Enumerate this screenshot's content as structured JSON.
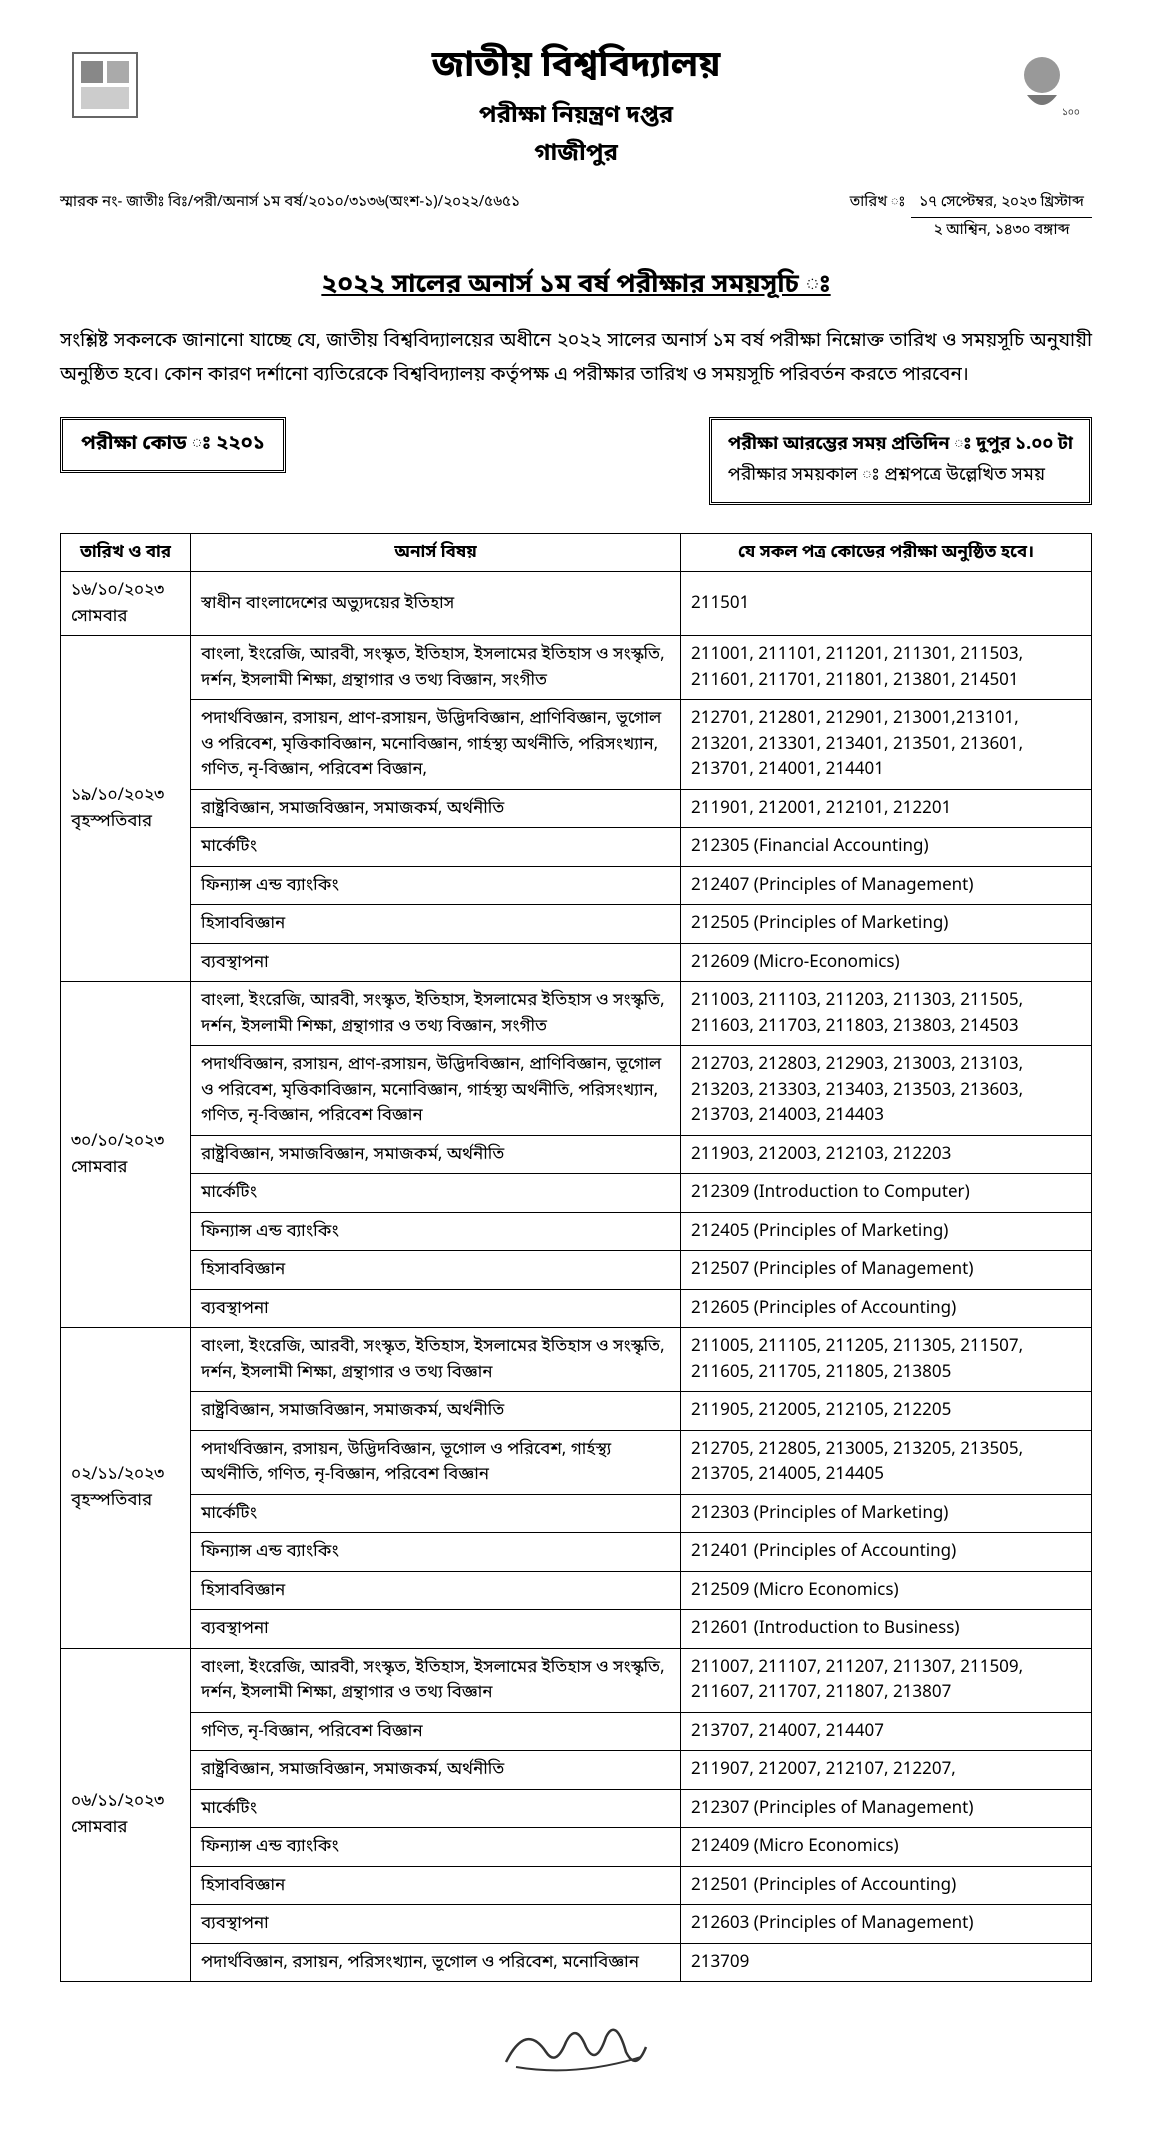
{
  "header": {
    "university": "জাতীয় বিশ্ববিদ্যালয়",
    "department": "পরীক্ষা নিয়ন্ত্রণ দপ্তর",
    "city": "গাজীপুর"
  },
  "ref": {
    "label": "স্মারক নং- জাতীঃ বিঃ/পরী/অনার্স ১ম বর্ষ/২০১০/৩১৩৬(অংশ-১)/২০২২/৫৬৫১",
    "date_label": "তারিখ ঃ",
    "date_line1": "১৭ সেপ্টেম্বর, ২০২৩ খ্রিস্টাব্দ",
    "date_line2": "২ আশ্বিন, ১৪৩০ বঙ্গাব্দ"
  },
  "main_heading": "২০২২ সালের অনার্স ১ম বর্ষ পরীক্ষার সময়সূচি ঃ",
  "intro": "সংশ্লিষ্ট সকলকে জানানো যাচ্ছে যে, জাতীয় বিশ্ববিদ্যালয়ের অধীনে ২০২২ সালের অনার্স ১ম বর্ষ পরীক্ষা নিম্নোক্ত তারিখ ও সময়সূচি অনুযায়ী অনুষ্ঠিত হবে। কোন কারণ দর্শানো ব্যতিরেকে বিশ্ববিদ্যালয় কর্তৃপক্ষ এ পরীক্ষার তারিখ ও সময়সূচি পরিবর্তন করতে পারবেন।",
  "exam_code_box": "পরীক্ষা কোড ঃ ২২০১",
  "time_box": {
    "start": "পরীক্ষা আরম্ভের সময় প্রতিদিন ঃ  দুপুর ১.০০ টা",
    "duration": "পরীক্ষার সময়কাল ঃ  প্রশ্নপত্রে উল্লেখিত সময়"
  },
  "table": {
    "headers": {
      "date": "তারিখ ও বার",
      "subject": "অনার্স বিষয়",
      "codes": "যে সকল পত্র কোডের পরীক্ষা অনুষ্ঠিত হবে।"
    },
    "groups": [
      {
        "date": "১৬/১০/২০২৩",
        "day": "সোমবার",
        "rows": [
          {
            "subject": "স্বাধীন বাংলাদেশের অভ্যুদয়ের ইতিহাস",
            "codes": "211501"
          }
        ]
      },
      {
        "date": "১৯/১০/২০২৩",
        "day": "বৃহস্পতিবার",
        "rows": [
          {
            "subject": "বাংলা, ইংরেজি, আরবী, সংস্কৃত, ইতিহাস, ইসলামের ইতিহাস ও সংস্কৃতি, দর্শন, ইসলামী শিক্ষা, গ্রন্থাগার ও তথ্য বিজ্ঞান, সংগীত",
            "codes": "211001, 211101, 211201, 211301, 211503, 211601, 211701, 211801, 213801, 214501"
          },
          {
            "subject": "পদার্থবিজ্ঞান, রসায়ন, প্রাণ-রসায়ন, উদ্ভিদবিজ্ঞান, প্রাণিবিজ্ঞান, ভূগোল ও পরিবেশ, মৃত্তিকাবিজ্ঞান, মনোবিজ্ঞান, গার্হস্থ্য অর্থনীতি, পরিসংখ্যান, গণিত, নৃ-বিজ্ঞান, পরিবেশ বিজ্ঞান,",
            "codes": "212701, 212801, 212901, 213001,213101, 213201, 213301, 213401, 213501, 213601, 213701, 214001, 214401"
          },
          {
            "subject": "রাষ্ট্রবিজ্ঞান, সমাজবিজ্ঞান, সমাজকর্ম, অর্থনীতি",
            "codes": "211901, 212001, 212101, 212201"
          },
          {
            "subject": "মার্কেটিং",
            "codes": "212305 (Financial Accounting)"
          },
          {
            "subject": "ফিন্যান্স এন্ড ব্যাংকিং",
            "codes": "212407 (Principles of Management)"
          },
          {
            "subject": "হিসাববিজ্ঞান",
            "codes": "212505 (Principles of Marketing)"
          },
          {
            "subject": "ব্যবস্থাপনা",
            "codes": "212609 (Micro-Economics)"
          }
        ]
      },
      {
        "date": "৩০/১০/২০২৩",
        "day": "সোমবার",
        "rows": [
          {
            "subject": "বাংলা, ইংরেজি, আরবী, সংস্কৃত, ইতিহাস, ইসলামের ইতিহাস ও সংস্কৃতি, দর্শন, ইসলামী শিক্ষা, গ্রন্থাগার ও তথ্য বিজ্ঞান, সংগীত",
            "codes": "211003, 211103, 211203, 211303, 211505, 211603, 211703, 211803, 213803, 214503"
          },
          {
            "subject": "পদার্থবিজ্ঞান, রসায়ন, প্রাণ-রসায়ন, উদ্ভিদবিজ্ঞান, প্রাণিবিজ্ঞান, ভূগোল ও পরিবেশ, মৃত্তিকাবিজ্ঞান, মনোবিজ্ঞান, গার্হস্থ্য অর্থনীতি, পরিসংখ্যান, গণিত, নৃ-বিজ্ঞান, পরিবেশ বিজ্ঞান",
            "codes": "212703, 212803, 212903, 213003, 213103, 213203, 213303, 213403, 213503, 213603, 213703, 214003, 214403"
          },
          {
            "subject": "রাষ্ট্রবিজ্ঞান, সমাজবিজ্ঞান, সমাজকর্ম, অর্থনীতি",
            "codes": "211903, 212003, 212103, 212203"
          },
          {
            "subject": "মার্কেটিং",
            "codes": "212309 (Introduction to Computer)"
          },
          {
            "subject": "ফিন্যান্স এন্ড ব্যাংকিং",
            "codes": "212405 (Principles of Marketing)"
          },
          {
            "subject": "হিসাববিজ্ঞান",
            "codes": "212507 (Principles of Management)"
          },
          {
            "subject": "ব্যবস্থাপনা",
            "codes": "212605 (Principles of Accounting)"
          }
        ]
      },
      {
        "date": "০২/১১/২০২৩",
        "day": "বৃহস্পতিবার",
        "rows": [
          {
            "subject": "বাংলা, ইংরেজি, আরবী, সংস্কৃত, ইতিহাস, ইসলামের ইতিহাস ও সংস্কৃতি, দর্শন, ইসলামী শিক্ষা, গ্রন্থাগার ও তথ্য বিজ্ঞান",
            "codes": "211005, 211105, 211205, 211305, 211507, 211605, 211705, 211805, 213805"
          },
          {
            "subject": "রাষ্ট্রবিজ্ঞান, সমাজবিজ্ঞান, সমাজকর্ম, অর্থনীতি",
            "codes": "211905, 212005, 212105, 212205"
          },
          {
            "subject": "পদার্থবিজ্ঞান, রসায়ন, উদ্ভিদবিজ্ঞান, ভূগোল ও পরিবেশ, গার্হস্থ্য অর্থনীতি, গণিত, নৃ-বিজ্ঞান, পরিবেশ বিজ্ঞান",
            "codes": "212705, 212805, 213005, 213205, 213505, 213705, 214005, 214405"
          },
          {
            "subject": "মার্কেটিং",
            "codes": "212303 (Principles of Marketing)"
          },
          {
            "subject": "ফিন্যান্স এন্ড ব্যাংকিং",
            "codes": "212401 (Principles of Accounting)"
          },
          {
            "subject": "হিসাববিজ্ঞান",
            "codes": "212509 (Micro Economics)"
          },
          {
            "subject": "ব্যবস্থাপনা",
            "codes": "212601 (Introduction to Business)"
          }
        ]
      },
      {
        "date": "০৬/১১/২০২৩",
        "day": "সোমবার",
        "rows": [
          {
            "subject": "বাংলা, ইংরেজি, আরবী, সংস্কৃত, ইতিহাস, ইসলামের ইতিহাস ও সংস্কৃতি, দর্শন, ইসলামী শিক্ষা, গ্রন্থাগার ও তথ্য বিজ্ঞান",
            "codes": "211007, 211107, 211207, 211307, 211509, 211607, 211707, 211807, 213807"
          },
          {
            "subject": "গণিত, নৃ-বিজ্ঞান, পরিবেশ বিজ্ঞান",
            "codes": "213707, 214007, 214407"
          },
          {
            "subject": "রাষ্ট্রবিজ্ঞান, সমাজবিজ্ঞান, সমাজকর্ম, অর্থনীতি",
            "codes": "211907, 212007, 212107, 212207,"
          },
          {
            "subject": "মার্কেটিং",
            "codes": "212307 (Principles of Management)"
          },
          {
            "subject": "ফিন্যান্স এন্ড ব্যাংকিং",
            "codes": "212409 (Micro Economics)"
          },
          {
            "subject": "হিসাববিজ্ঞান",
            "codes": "212501 (Principles of Accounting)"
          },
          {
            "subject": "ব্যবস্থাপনা",
            "codes": "212603 (Principles of Management)"
          },
          {
            "subject": "পদার্থবিজ্ঞান, রসায়ন, পরিসংখ্যান, ভূগোল ও পরিবেশ, মনোবিজ্ঞান",
            "codes": "213709"
          }
        ]
      }
    ]
  }
}
